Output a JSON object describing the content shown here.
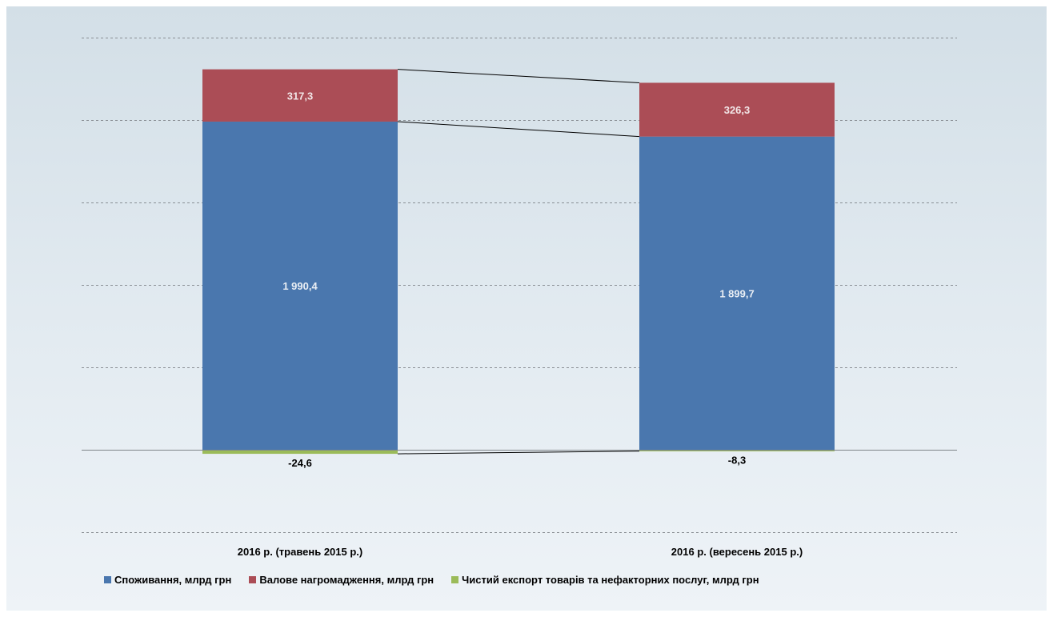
{
  "chart_data": {
    "type": "bar",
    "stacked": true,
    "categories": [
      "2016 р. (травень 2015 р.)",
      "2016 р. (вересень 2015 р.)"
    ],
    "series": [
      {
        "name": "Споживання, млрд грн",
        "values": [
          1990.4,
          1899.7
        ],
        "labels": [
          "1 990,4",
          "1 899,7"
        ],
        "color": "#4a77ae"
      },
      {
        "name": "Валове нагромадження, млрд грн",
        "values": [
          317.3,
          326.3
        ],
        "labels": [
          "317,3",
          "326,3"
        ],
        "color": "#ab4d56"
      },
      {
        "name": "Чистий експорт товарів та нефакторних послуг, млрд грн",
        "values": [
          -24.6,
          -8.3
        ],
        "labels": [
          "-24,6",
          "-8,3"
        ],
        "color": "#9bbb59"
      }
    ],
    "ylim": [
      -500,
      2500
    ],
    "grid": true,
    "legend": "bottom",
    "connector_lines": true
  },
  "legend_items": [
    {
      "label": "Споживання, млрд грн",
      "color": "#4a77ae"
    },
    {
      "label": "Валове нагромадження, млрд грн",
      "color": "#ab4d56"
    },
    {
      "label": "Чистий експорт товарів та нефакторних послуг, млрд грн",
      "color": "#9bbb59"
    }
  ]
}
